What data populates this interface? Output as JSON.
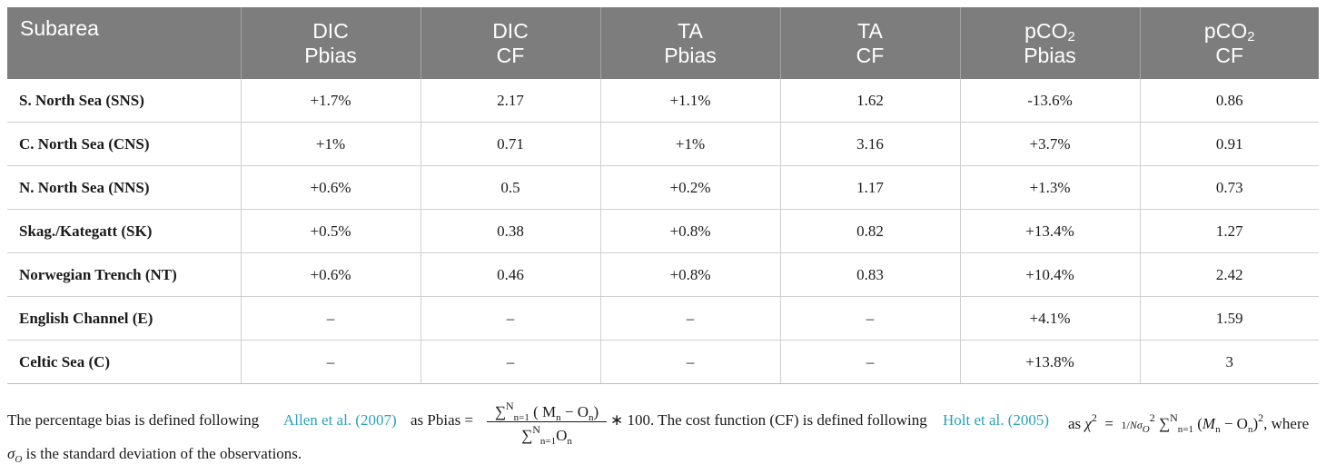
{
  "table": {
    "headers": [
      {
        "line1": "Subarea",
        "line2": ""
      },
      {
        "line1": "DIC",
        "line2": "Pbias"
      },
      {
        "line1": "DIC",
        "line2": "CF"
      },
      {
        "line1": "TA",
        "line2": "Pbias"
      },
      {
        "line1": "TA",
        "line2": "CF"
      },
      {
        "line1": "pCO",
        "line1_sub": "2",
        "line2": "Pbias"
      },
      {
        "line1": "pCO",
        "line1_sub": "2",
        "line2": "CF"
      }
    ],
    "rows": [
      [
        "S. North Sea (SNS)",
        "+1.7%",
        "2.17",
        "+1.1%",
        "1.62",
        "-13.6%",
        "0.86"
      ],
      [
        "C. North Sea (CNS)",
        "+1%",
        "0.71",
        "+1%",
        "3.16",
        "+3.7%",
        "0.91"
      ],
      [
        "N. North Sea (NNS)",
        "+0.6%",
        "0.5",
        "+0.2%",
        "1.17",
        "+1.3%",
        "0.73"
      ],
      [
        "Skag./Kategatt (SK)",
        "+0.5%",
        "0.38",
        "+0.8%",
        "0.82",
        "+13.4%",
        "1.27"
      ],
      [
        "Norwegian Trench (NT)",
        "+0.6%",
        "0.46",
        "+0.8%",
        "0.83",
        "+10.4%",
        "2.42"
      ],
      [
        "English Channel (E)",
        "–",
        "–",
        "–",
        "–",
        "+4.1%",
        "1.59"
      ],
      [
        "Celtic Sea (C)",
        "–",
        "–",
        "–",
        "–",
        "+13.8%",
        "3"
      ]
    ]
  },
  "footnote": {
    "text1": "The percentage bias is defined following ",
    "link1": "Allen et al. (2007)",
    "text2": " as Pbias =",
    "frac_num": "∑ N n=1 ( M n − O n )",
    "frac_den": "∑ N n=1 O n",
    "text3": "∗ 100. The cost function (CF) is defined following ",
    "link2": "Holt et al. (2005)",
    "text4": " as χ 2 = 1 Nσ O 2 ∑ N n=1 (M n − O n ) 2 , where",
    "line2": "σ O is the standard deviation of the observations."
  }
}
